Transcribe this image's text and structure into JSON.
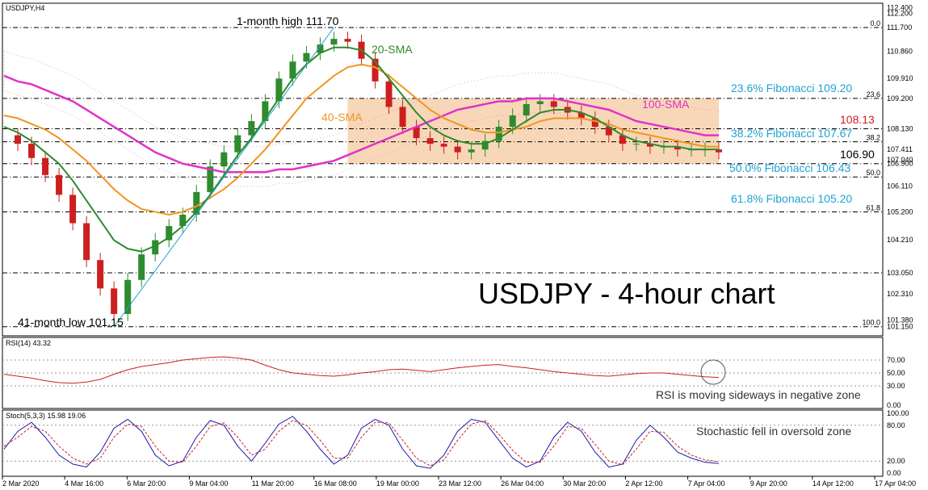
{
  "chart_data": [
    {
      "type": "candlestick",
      "symbol_label": "USDJPY,H4",
      "title": "USDJPY - 4-hour chart",
      "y_ticks": [
        "112.400",
        "112.200",
        "111.700",
        "110.860",
        "109.910",
        "109.200",
        "108.130",
        "107.411",
        "107.040",
        "106.900",
        "106.110",
        "105.200",
        "104.210",
        "103.050",
        "102.310",
        "101.380",
        "101.150"
      ],
      "x_ticks": [
        "2 Mar 2020",
        "4 Mar 16:00",
        "6 Mar 20:00",
        "9 Mar 04:00",
        "11 Mar 20:00",
        "16 Mar 08:00",
        "19 Mar 00:00",
        "23 Mar 12:00",
        "26 Mar 04:00",
        "30 Mar 20:00",
        "2 Apr 12:00",
        "7 Apr 04:00",
        "9 Apr 20:00",
        "14 Apr 12:00",
        "17 Apr 04:00"
      ],
      "ylim": [
        101.0,
        112.5
      ],
      "series_summary": {
        "price_close": [
          107.9,
          107.6,
          107.1,
          106.5,
          105.8,
          104.8,
          103.5,
          102.5,
          101.6,
          102.8,
          103.7,
          104.2,
          104.7,
          105.1,
          105.9,
          106.8,
          107.3,
          107.9,
          108.4,
          109.1,
          109.9,
          110.5,
          110.8,
          111.1,
          111.3,
          111.2,
          110.6,
          109.8,
          108.9,
          108.2,
          107.8,
          107.6,
          107.5,
          107.3,
          107.4,
          107.7,
          108.2,
          108.6,
          109.0,
          109.1,
          108.9,
          108.7,
          108.5,
          108.2,
          107.9,
          107.6,
          107.6,
          107.5,
          107.5,
          107.4,
          107.4,
          107.4,
          107.3
        ],
        "sma20": [
          108.2,
          108.0,
          107.7,
          107.3,
          106.9,
          106.3,
          105.6,
          104.9,
          104.2,
          103.9,
          103.8,
          104.0,
          104.3,
          104.7,
          105.2,
          105.8,
          106.5,
          107.2,
          107.8,
          108.5,
          109.2,
          109.9,
          110.4,
          110.8,
          111.0,
          111.0,
          110.9,
          110.5,
          109.9,
          109.3,
          108.7,
          108.2,
          107.9,
          107.7,
          107.6,
          107.6,
          107.8,
          108.1,
          108.4,
          108.7,
          108.8,
          108.8,
          108.7,
          108.5,
          108.2,
          107.9,
          107.7,
          107.6,
          107.5,
          107.5,
          107.4,
          107.4,
          107.4
        ],
        "sma40": [
          108.6,
          108.5,
          108.3,
          108.1,
          107.8,
          107.4,
          107.0,
          106.5,
          106.0,
          105.6,
          105.3,
          105.2,
          105.1,
          105.2,
          105.4,
          105.7,
          106.0,
          106.4,
          106.9,
          107.4,
          108.0,
          108.6,
          109.2,
          109.6,
          110.0,
          110.3,
          110.4,
          110.3,
          110.0,
          109.6,
          109.2,
          108.8,
          108.5,
          108.3,
          108.1,
          108.0,
          108.0,
          108.1,
          108.2,
          108.4,
          108.5,
          108.5,
          108.5,
          108.4,
          108.3,
          108.1,
          108.0,
          107.9,
          107.8,
          107.7,
          107.6,
          107.5,
          107.5
        ],
        "sma100": [
          110.0,
          109.8,
          109.7,
          109.5,
          109.3,
          109.1,
          108.8,
          108.5,
          108.2,
          107.9,
          107.6,
          107.3,
          107.1,
          106.9,
          106.8,
          106.7,
          106.6,
          106.6,
          106.6,
          106.6,
          106.7,
          106.7,
          106.8,
          106.9,
          107.0,
          107.2,
          107.4,
          107.6,
          107.8,
          108.0,
          108.2,
          108.4,
          108.6,
          108.8,
          108.9,
          109.0,
          109.1,
          109.1,
          109.2,
          109.2,
          109.2,
          109.1,
          109.0,
          108.9,
          108.8,
          108.6,
          108.4,
          108.3,
          108.2,
          108.1,
          108.0,
          107.9,
          107.9
        ]
      },
      "horizontal_levels": [
        {
          "value": 111.7,
          "label": "0.0"
        },
        {
          "value": 109.2,
          "label": "23.6"
        },
        {
          "value": 108.13,
          "label": ""
        },
        {
          "value": 107.67,
          "label": "38.2"
        },
        {
          "value": 106.9,
          "label": ""
        },
        {
          "value": 106.43,
          "label": "50.0"
        },
        {
          "value": 105.2,
          "label": "61.8"
        },
        {
          "value": 103.05,
          "label": ""
        },
        {
          "value": 101.15,
          "label": "100.0"
        }
      ],
      "annotations": {
        "high": "1-month high 111.70",
        "low": "41-month low 101.15",
        "sma20": "20-SMA",
        "sma40": "40-SMA",
        "sma100": "100-SMA",
        "fib236": "23.6% Fibonacci 109.20",
        "fib382": "38.2% Fibonacci 107.67",
        "fib500": "50.0% Fibonacci 106.43",
        "fib618": "61.8% Fibonacci 105.20",
        "lvl108": "108.13",
        "lvl106": "106.90"
      },
      "colors": {
        "sma20": "#2e8b2e",
        "sma40": "#f0961e",
        "sma100": "#e033c8",
        "fib": "#1fa3d6",
        "bull": "#2e8b2e",
        "bear": "#cc1f1f",
        "ichimoku": "#e88ab8",
        "box": "#f5c9a0"
      }
    },
    {
      "type": "line",
      "title": "RSI(14) 43.32",
      "y_ticks": [
        "70.00",
        "50.00",
        "30.00",
        "0.00"
      ],
      "ylim": [
        0,
        100
      ],
      "values": [
        48,
        45,
        42,
        38,
        35,
        34,
        36,
        40,
        48,
        55,
        60,
        63,
        66,
        70,
        72,
        74,
        75,
        73,
        70,
        62,
        55,
        50,
        48,
        46,
        45,
        47,
        50,
        52,
        55,
        56,
        54,
        52,
        55,
        58,
        60,
        62,
        63,
        60,
        58,
        55,
        52,
        50,
        48,
        46,
        45,
        47,
        49,
        50,
        50,
        48,
        46,
        44,
        43
      ],
      "annotation": "RSI is moving sideways in negative zone",
      "color": "#cc1f1f"
    },
    {
      "type": "line",
      "title": "Stoch(5,3,3) 15.98 19.06",
      "y_ticks": [
        "100.00",
        "80.00",
        "20.00",
        "0.00"
      ],
      "ylim": [
        0,
        100
      ],
      "series": [
        {
          "values": [
            40,
            70,
            85,
            60,
            30,
            15,
            10,
            35,
            75,
            90,
            70,
            30,
            12,
            20,
            60,
            88,
            80,
            45,
            20,
            50,
            82,
            95,
            70,
            40,
            15,
            30,
            75,
            90,
            80,
            40,
            12,
            8,
            30,
            70,
            90,
            85,
            55,
            25,
            10,
            20,
            60,
            85,
            70,
            35,
            10,
            15,
            55,
            80,
            60,
            35,
            25,
            18,
            16
          ]
        },
        {
          "values": [
            45,
            60,
            78,
            70,
            45,
            25,
            15,
            25,
            60,
            82,
            78,
            45,
            20,
            18,
            45,
            78,
            84,
            60,
            30,
            40,
            70,
            88,
            80,
            55,
            25,
            25,
            60,
            85,
            84,
            55,
            25,
            12,
            22,
            55,
            82,
            88,
            65,
            38,
            18,
            18,
            45,
            78,
            75,
            48,
            20,
            14,
            40,
            70,
            68,
            45,
            30,
            22,
            19
          ]
        }
      ],
      "annotation": "Stochastic fell in oversold zone",
      "colors": [
        "#1a1aaa",
        "#cc1f1f"
      ]
    }
  ]
}
